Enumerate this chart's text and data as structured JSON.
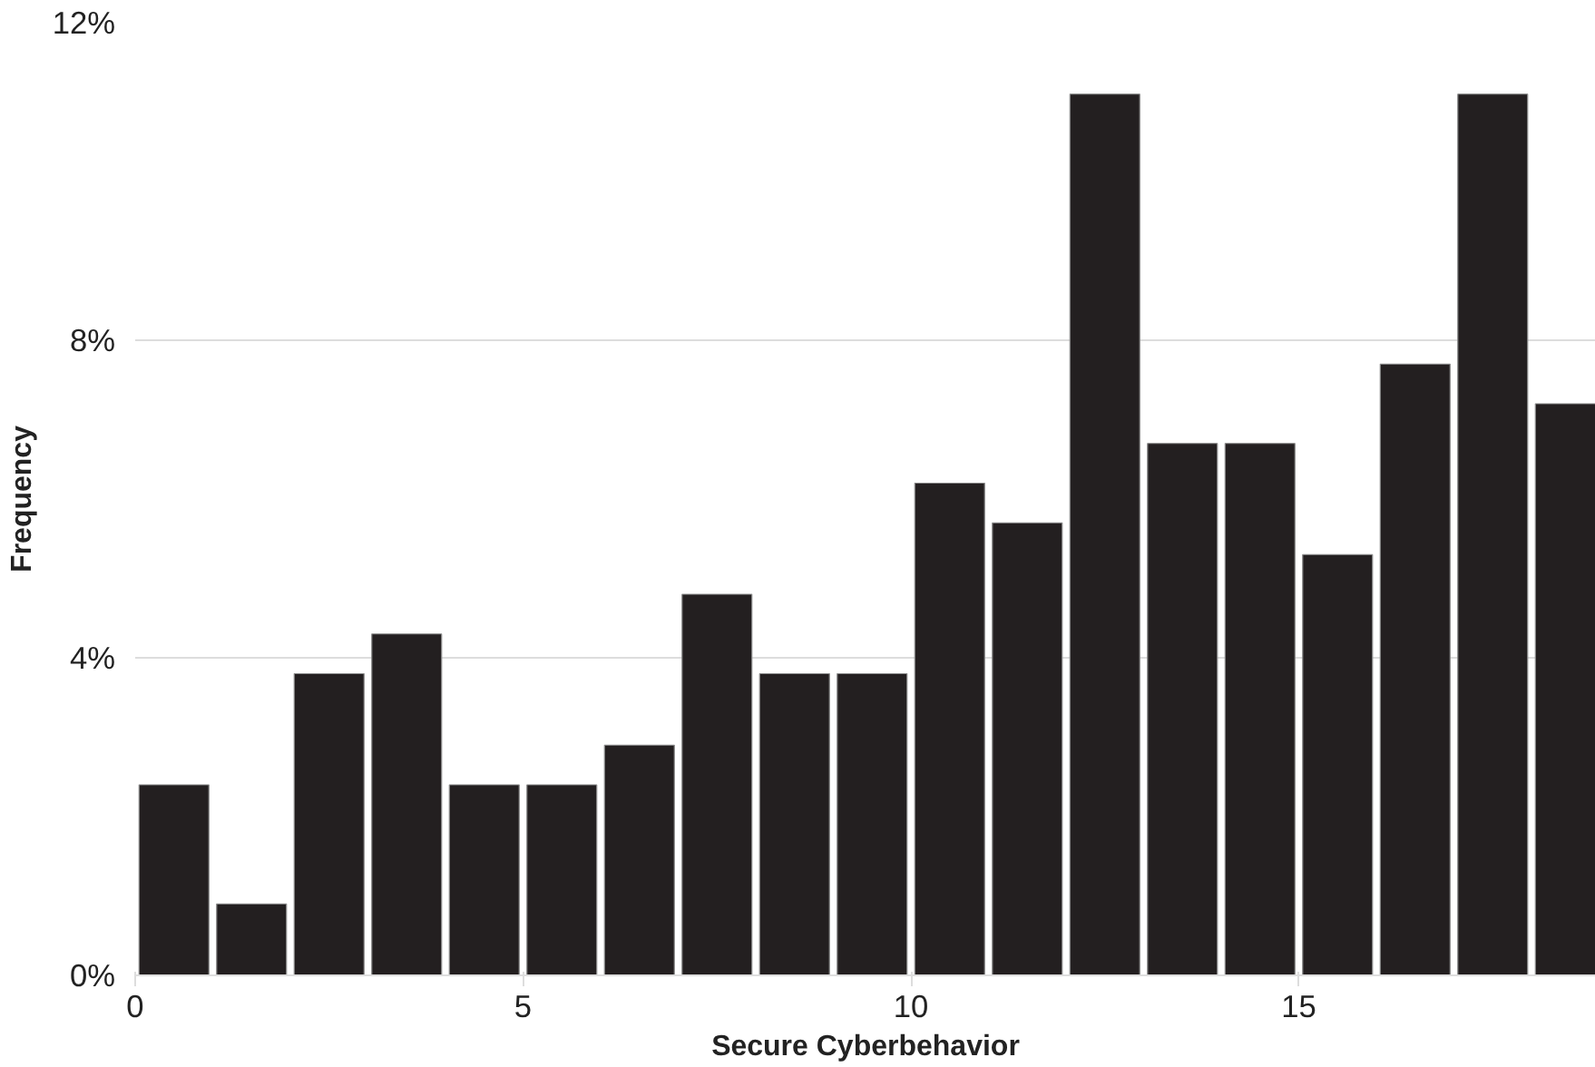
{
  "chart_data": {
    "type": "histogram",
    "xlabel": "Secure Cyberbehavior",
    "ylabel": "Frequency",
    "bins": [
      0,
      1,
      2,
      3,
      4,
      5,
      6,
      7,
      8,
      9,
      10,
      11,
      12,
      13,
      14,
      15,
      16,
      17,
      18,
      19
    ],
    "values": [
      2.4,
      0.9,
      3.8,
      4.3,
      2.4,
      2.4,
      2.9,
      4.8,
      3.8,
      3.8,
      6.2,
      5.7,
      11.1,
      6.7,
      6.7,
      5.3,
      7.7,
      11.1,
      7.2
    ],
    "color": "#231f20",
    "xlim": [
      0,
      18.83
    ],
    "xticks": [
      0,
      5,
      10,
      15
    ],
    "ylim": [
      0,
      12
    ],
    "yticks": [
      {
        "value": 0,
        "label": "0%"
      },
      {
        "value": 4,
        "label": "4%"
      },
      {
        "value": 8,
        "label": "8%"
      },
      {
        "value": 12,
        "label": "12%"
      }
    ],
    "grid": "y"
  }
}
